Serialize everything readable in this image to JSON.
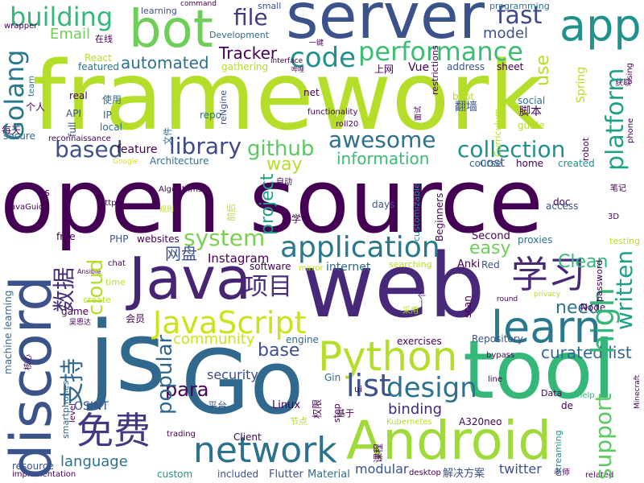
{
  "palette": {
    "dark_purple": "#440154",
    "indigo": "#3b528b",
    "blue": "#31688e",
    "teal": "#21918c",
    "green": "#35b779",
    "lime": "#5ec962",
    "yellow_green": "#b5de2b",
    "yellow": "#d8e219"
  },
  "words": [
    {
      "text": "framework",
      "color": "#b5de2b"
    },
    {
      "text": "open source",
      "color": "#440154"
    },
    {
      "text": "web",
      "color": "#482878"
    },
    {
      "text": "server",
      "color": "#3b528b"
    },
    {
      "text": "Go",
      "color": "#31688e"
    },
    {
      "text": "tool",
      "color": "#35b779"
    },
    {
      "text": "js",
      "color": "#31688e"
    },
    {
      "text": "bot",
      "color": "#6ece58"
    },
    {
      "text": "Java",
      "color": "#482475"
    },
    {
      "text": "discord",
      "color": "#3b528b"
    },
    {
      "text": "Android",
      "color": "#a0da39"
    },
    {
      "text": "Python",
      "color": "#b5de2b"
    },
    {
      "text": "app",
      "color": "#21918c"
    },
    {
      "text": "learn",
      "color": "#2a788e"
    },
    {
      "text": "network",
      "color": "#2c728e"
    },
    {
      "text": "JavaScript",
      "color": "#cde11d"
    },
    {
      "text": "performance",
      "color": "#3dbc74"
    },
    {
      "text": "application",
      "color": "#2a788e"
    },
    {
      "text": "免费",
      "color": "#453781"
    },
    {
      "text": "学习",
      "color": "#482878"
    },
    {
      "text": "code",
      "color": "#21918c"
    },
    {
      "text": "building",
      "color": "#35b779"
    },
    {
      "text": "file",
      "color": "#443a83"
    },
    {
      "text": "fast",
      "color": "#3e4a89"
    },
    {
      "text": "Golang",
      "color": "#2a788e"
    },
    {
      "text": "platform",
      "color": "#1fa187"
    },
    {
      "text": "high",
      "color": "#35b779"
    },
    {
      "text": "written",
      "color": "#1f9e89"
    },
    {
      "text": "support",
      "color": "#5ec962"
    },
    {
      "text": "list",
      "color": "#3b528b"
    },
    {
      "text": "design",
      "color": "#2c728e"
    },
    {
      "text": "library",
      "color": "#3e4a89"
    },
    {
      "text": "github",
      "color": "#5ec962"
    },
    {
      "text": "awesome",
      "color": "#2c728e"
    },
    {
      "text": "collection",
      "color": "#21918c"
    },
    {
      "text": "based",
      "color": "#3b528b"
    },
    {
      "text": "system",
      "color": "#7ad151"
    },
    {
      "text": "automated",
      "color": "#2c728e"
    },
    {
      "text": "Tracker",
      "color": "#440154"
    },
    {
      "text": "Email",
      "color": "#6ece58"
    },
    {
      "text": "model",
      "color": "#3b528b"
    },
    {
      "text": "use",
      "color": "#b5de2b"
    },
    {
      "text": "programming",
      "color": "#2c728e"
    },
    {
      "text": "easy",
      "color": "#6ece58"
    },
    {
      "text": "Clean",
      "color": "#35b779"
    },
    {
      "text": "项目",
      "color": "#472d7b"
    },
    {
      "text": "数据",
      "color": "#472d7b"
    },
    {
      "text": "网盘",
      "color": "#3b528b"
    },
    {
      "text": "cloud",
      "color": "#b5de2b"
    },
    {
      "text": "支持",
      "color": "#31688e"
    },
    {
      "text": "popular",
      "color": "#31688e"
    },
    {
      "text": "para",
      "color": "#440154"
    },
    {
      "text": "curated list",
      "color": "#31688e"
    },
    {
      "text": "base",
      "color": "#3b528b"
    },
    {
      "text": "need",
      "color": "#2c728e"
    },
    {
      "text": "security",
      "color": "#3e4a89"
    },
    {
      "text": "binding",
      "color": "#482878"
    },
    {
      "text": "language",
      "color": "#2c728e"
    },
    {
      "text": "community",
      "color": "#cde11d"
    },
    {
      "text": "information",
      "color": "#3dbc74"
    },
    {
      "text": "project",
      "color": "#1fa187"
    },
    {
      "text": "way",
      "color": "#b5de2b"
    },
    {
      "text": "feature",
      "color": "#440154"
    },
    {
      "text": "cost",
      "color": "#3b528b"
    },
    {
      "text": "Instagram",
      "color": "#440154"
    },
    {
      "text": "Linux",
      "color": "#440154"
    },
    {
      "text": "Spring",
      "color": "#b5de2b"
    },
    {
      "text": "Vue",
      "color": "#440154"
    },
    {
      "text": "Anki",
      "color": "#440154"
    },
    {
      "text": "Second",
      "color": "#440154"
    },
    {
      "text": "twitter",
      "color": "#3b528b"
    },
    {
      "text": "modular",
      "color": "#3b528b"
    },
    {
      "text": "Flutter",
      "color": "#3b528b"
    },
    {
      "text": "Material",
      "color": "#2c728e"
    },
    {
      "text": "解决方案",
      "color": "#3b528b"
    },
    {
      "text": "Client",
      "color": "#440154"
    },
    {
      "text": "PHP",
      "color": "#3b528b"
    },
    {
      "text": "websites",
      "color": "#440154"
    },
    {
      "text": "internet",
      "color": "#31688e"
    },
    {
      "text": "software",
      "color": "#440154"
    },
    {
      "text": "Repository",
      "color": "#3b528b"
    },
    {
      "text": "exercises",
      "color": "#440154"
    },
    {
      "text": "engine",
      "color": "#31688e"
    },
    {
      "text": "Red",
      "color": "#3b528b"
    },
    {
      "text": "proxies",
      "color": "#2c728e"
    },
    {
      "text": "doc",
      "color": "#440154"
    },
    {
      "text": "access",
      "color": "#3b528b"
    },
    {
      "text": "days",
      "color": "#3b528b"
    },
    {
      "text": "course",
      "color": "#31688e"
    },
    {
      "text": "created",
      "color": "#21918c"
    },
    {
      "text": "home",
      "color": "#440154"
    },
    {
      "text": "reNgine",
      "color": "#3b528b"
    },
    {
      "text": "Architecture",
      "color": "#2c728e"
    },
    {
      "text": "featured",
      "color": "#2c728e"
    },
    {
      "text": "local",
      "color": "#31688e"
    },
    {
      "text": "API",
      "color": "#3b528b"
    },
    {
      "text": "IP",
      "color": "#31688e"
    },
    {
      "text": "repo",
      "color": "#2c728e"
    },
    {
      "text": "net",
      "color": "#440154"
    },
    {
      "text": "gathering",
      "color": "#b5de2b"
    },
    {
      "text": "address",
      "color": "#3b528b"
    },
    {
      "text": "sheet",
      "color": "#440154"
    },
    {
      "text": "restrictions",
      "color": "#440154"
    },
    {
      "text": "boot",
      "color": "#b5de2b"
    },
    {
      "text": "翻墙",
      "color": "#3b528b"
    },
    {
      "text": "脚本",
      "color": "#440154"
    },
    {
      "text": "social",
      "color": "#2c728e"
    },
    {
      "text": "guide",
      "color": "#b5de2b"
    },
    {
      "text": "robot",
      "color": "#440154"
    },
    {
      "text": "secure",
      "color": "#31688e"
    },
    {
      "text": "full",
      "color": "#3b528b"
    },
    {
      "text": "real",
      "color": "#440154"
    },
    {
      "text": "React",
      "color": "#b5de2b"
    },
    {
      "text": "Development",
      "color": "#31688e"
    },
    {
      "text": "learning",
      "color": "#3b528b"
    },
    {
      "text": "command",
      "color": "#440154"
    },
    {
      "text": "small",
      "color": "#3b528b"
    },
    {
      "text": "wrapper",
      "color": "#440154"
    },
    {
      "text": "在线",
      "color": "#440154"
    },
    {
      "text": "使用",
      "color": "#31688e"
    },
    {
      "text": "个人",
      "color": "#440154"
    },
    {
      "text": "每天",
      "color": "#440154"
    },
    {
      "text": "reconnaissance",
      "color": "#440154"
    },
    {
      "text": "Google",
      "color": "#d8e219"
    },
    {
      "text": "us",
      "color": "#440154"
    },
    {
      "text": "free",
      "color": "#440154"
    },
    {
      "text": "https",
      "color": "#440154"
    },
    {
      "text": "chat",
      "color": "#440154"
    },
    {
      "text": "machine learning",
      "color": "#31688e"
    },
    {
      "text": "game",
      "color": "#440154"
    },
    {
      "text": "create",
      "color": "#b5de2b"
    },
    {
      "text": "time",
      "color": "#b5de2b"
    },
    {
      "text": "会员",
      "color": "#440154"
    },
    {
      "text": "smartphones",
      "color": "#31688e"
    },
    {
      "text": "OSINT",
      "color": "#3b528b"
    },
    {
      "text": "level",
      "color": "#440154"
    },
    {
      "text": "resource",
      "color": "#3b528b"
    },
    {
      "text": "implementation",
      "color": "#440154"
    },
    {
      "text": "custom",
      "color": "#21918c"
    },
    {
      "text": "trading",
      "color": "#440154"
    },
    {
      "text": "included",
      "color": "#3b528b"
    },
    {
      "text": "desktop",
      "color": "#440154"
    },
    {
      "text": "老师",
      "color": "#440154"
    },
    {
      "text": "related",
      "color": "#440154"
    },
    {
      "text": "streaming",
      "color": "#21918c"
    },
    {
      "text": "help",
      "color": "#35b779"
    },
    {
      "text": "Minecraft",
      "color": "#440154"
    },
    {
      "text": "bypass",
      "color": "#440154"
    },
    {
      "text": "line",
      "color": "#440154"
    },
    {
      "text": "Data",
      "color": "#440154"
    },
    {
      "text": "de",
      "color": "#440154"
    },
    {
      "text": "A320neo",
      "color": "#440154"
    },
    {
      "text": "Gin",
      "color": "#31688e"
    },
    {
      "text": "step",
      "color": "#440154"
    },
    {
      "text": "ui",
      "color": "#440154"
    },
    {
      "text": "平台",
      "color": "#3b528b"
    },
    {
      "text": "权限",
      "color": "#440154"
    },
    {
      "text": "节点",
      "color": "#b5de2b"
    },
    {
      "text": "基于",
      "color": "#440154"
    },
    {
      "text": "Kubernetes",
      "color": "#b5de2b"
    },
    {
      "text": "课程",
      "color": "#440154"
    },
    {
      "text": "scan",
      "color": "#440154"
    },
    {
      "text": "round",
      "color": "#440154"
    },
    {
      "text": "privacy",
      "color": "#b5de2b"
    },
    {
      "text": "Node",
      "color": "#440154"
    },
    {
      "text": "password",
      "color": "#440154"
    },
    {
      "text": "testing",
      "color": "#b5de2b"
    },
    {
      "text": "3D",
      "color": "#440154"
    },
    {
      "text": "笔记",
      "color": "#440154"
    },
    {
      "text": "phone",
      "color": "#440154"
    },
    {
      "text": "获取",
      "color": "#440154"
    },
    {
      "text": "using",
      "color": "#440154"
    },
    {
      "text": "上网",
      "color": "#440154"
    },
    {
      "text": "Curriculum",
      "color": "#b5de2b"
    },
    {
      "text": "searching",
      "color": "#b5de2b"
    },
    {
      "text": "mirror",
      "color": "#b5de2b"
    },
    {
      "text": "Beginners",
      "color": "#440154"
    },
    {
      "text": "customizable",
      "color": "#21918c"
    },
    {
      "text": "functionality",
      "color": "#b5de2b"
    },
    {
      "text": "roll20",
      "color": "#440154"
    },
    {
      "text": "面试",
      "color": "#440154"
    },
    {
      "text": "文件",
      "color": "#440154"
    },
    {
      "text": "Algorithms",
      "color": "#2c728e"
    },
    {
      "text": "自动",
      "color": "#440154"
    },
    {
      "text": "科学",
      "color": "#440154"
    },
    {
      "text": "规则",
      "color": "#440154"
    },
    {
      "text": "前后",
      "color": "#440154"
    },
    {
      "text": "JavaGuide",
      "color": "#b5de2b"
    },
    {
      "text": "Ansible",
      "color": "#b5de2b"
    },
    {
      "text": "吴恩达",
      "color": "#440154"
    },
    {
      "text": "核心",
      "color": "#440154"
    },
    {
      "text": "采用",
      "color": "#440154"
    },
    {
      "text": "一个",
      "color": "#440154"
    },
    {
      "text": "team",
      "color": "#b5de2b"
    },
    {
      "text": "一键",
      "color": "#440154"
    },
    {
      "text": "interface",
      "color": "#2c728e"
    },
    {
      "text": "哔哩",
      "color": "#440154"
    },
    {
      "text": "py",
      "color": "#440154"
    },
    {
      "text": "预处",
      "color": "#440154"
    },
    {
      "text": "various",
      "color": "#440154"
    }
  ]
}
